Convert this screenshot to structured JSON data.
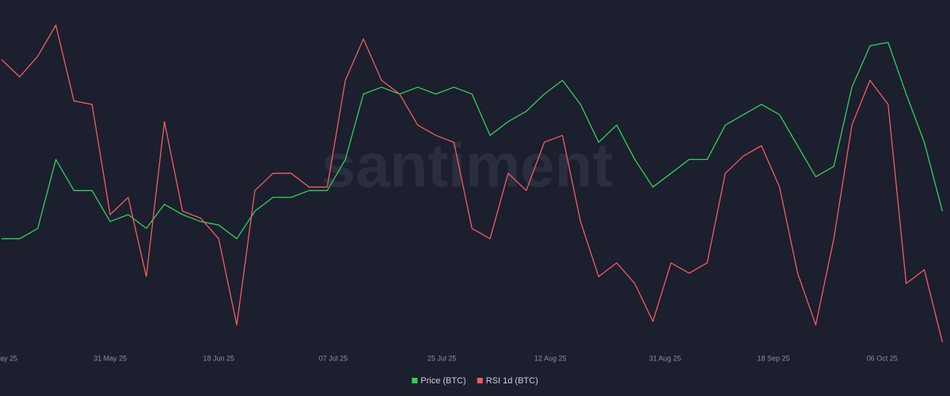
{
  "chart_data": {
    "type": "line",
    "watermark": "santiment",
    "x": [
      "2025-05-13",
      "2025-05-16",
      "2025-05-19",
      "2025-05-22",
      "2025-05-25",
      "2025-05-28",
      "2025-05-31",
      "2025-06-03",
      "2025-06-06",
      "2025-06-09",
      "2025-06-12",
      "2025-06-15",
      "2025-06-18",
      "2025-06-21",
      "2025-06-24",
      "2025-06-27",
      "2025-06-30",
      "2025-07-03",
      "2025-07-06",
      "2025-07-09",
      "2025-07-12",
      "2025-07-15",
      "2025-07-18",
      "2025-07-21",
      "2025-07-24",
      "2025-07-27",
      "2025-07-30",
      "2025-08-02",
      "2025-08-05",
      "2025-08-08",
      "2025-08-11",
      "2025-08-14",
      "2025-08-17",
      "2025-08-20",
      "2025-08-23",
      "2025-08-26",
      "2025-08-29",
      "2025-09-01",
      "2025-09-04",
      "2025-09-07",
      "2025-09-10",
      "2025-09-13",
      "2025-09-16",
      "2025-09-19",
      "2025-09-22",
      "2025-09-25",
      "2025-09-28",
      "2025-10-01",
      "2025-10-04",
      "2025-10-07",
      "2025-10-10",
      "2025-10-13",
      "2025-10-16"
    ],
    "series": [
      {
        "name": "Price (BTC)",
        "color": "#2fd15a",
        "values": [
          33,
          33,
          36,
          56,
          47,
          47,
          38,
          40,
          36,
          43,
          40,
          38,
          37,
          33,
          41,
          45,
          45,
          47,
          47,
          56,
          75,
          77,
          75,
          77,
          75,
          77,
          75,
          63,
          67,
          70,
          75,
          79,
          72,
          61,
          66,
          56,
          48,
          52,
          56,
          56,
          66,
          69,
          72,
          69,
          60,
          51,
          54,
          77,
          89,
          90,
          75,
          61,
          41
        ]
      },
      {
        "name": "RSI 1d (BTC)",
        "color": "#f25c61",
        "values": [
          85,
          80,
          86,
          95,
          73,
          72,
          40,
          45,
          22,
          67,
          41,
          39,
          33,
          8,
          47,
          52,
          52,
          48,
          48,
          79,
          91,
          79,
          75,
          66,
          63,
          61,
          36,
          33,
          52,
          47,
          61,
          63,
          38,
          22,
          26,
          20,
          9,
          26,
          23,
          26,
          52,
          57,
          60,
          48,
          23,
          8,
          33,
          66,
          79,
          72,
          20,
          24,
          3
        ]
      }
    ],
    "xlim": [
      "2025-05-13",
      "2025-10-17"
    ],
    "ylim": [
      0,
      100
    ],
    "xticks": [
      {
        "value": "2025-05-13",
        "label": "ay 25"
      },
      {
        "value": "2025-05-31",
        "label": "31 May 25"
      },
      {
        "value": "2025-06-18",
        "label": "18 Jun 25"
      },
      {
        "value": "2025-07-07",
        "label": "07 Jul 25"
      },
      {
        "value": "2025-07-25",
        "label": "25 Jul 25"
      },
      {
        "value": "2025-08-12",
        "label": "12 Aug 25"
      },
      {
        "value": "2025-08-31",
        "label": "31 Aug 25"
      },
      {
        "value": "2025-09-18",
        "label": "18 Sep 25"
      },
      {
        "value": "2025-10-06",
        "label": "06 Oct 25"
      }
    ],
    "legend": "bottom"
  }
}
